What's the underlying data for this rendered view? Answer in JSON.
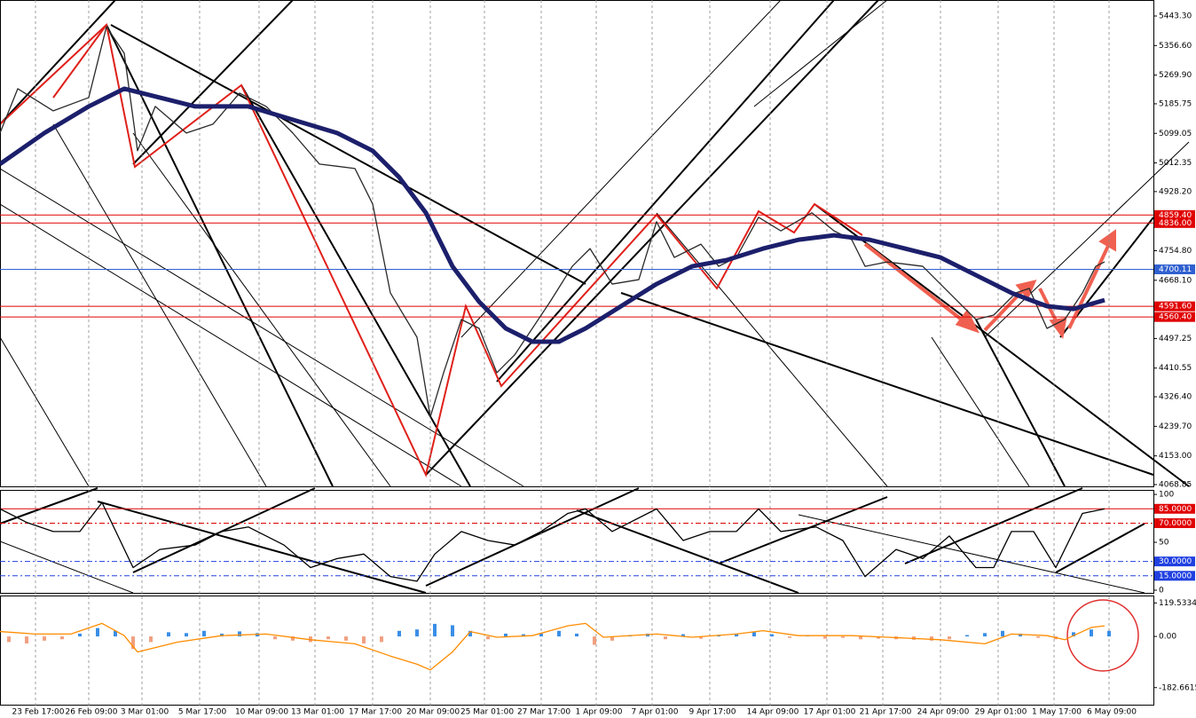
{
  "chart_data": [
    {
      "type": "line",
      "xlim": [
        0,
        130
      ],
      "ylim": [
        4063.6,
        5490.2
      ],
      "xticks": [
        {
          "value": 4,
          "label": "23 Feb 17:00"
        },
        {
          "value": 10,
          "label": "26 Feb 09:00"
        },
        {
          "value": 16,
          "label": "3 Mar 01:00"
        },
        {
          "value": 22.5,
          "label": "5 Mar 17:00"
        },
        {
          "value": 29.2,
          "label": "10 Mar 09:00"
        },
        {
          "value": 35.5,
          "label": "13 Mar 01:00"
        },
        {
          "value": 42,
          "label": "17 Mar 17:00"
        },
        {
          "value": 48.5,
          "label": "20 Mar 09:00"
        },
        {
          "value": 54.6,
          "label": "25 Mar 01:00"
        },
        {
          "value": 61,
          "label": "27 Mar 17:00"
        },
        {
          "value": 67.2,
          "label": "1 Apr 09:00"
        },
        {
          "value": 73.5,
          "label": "7 Apr 01:00"
        },
        {
          "value": 80,
          "label": "9 Apr 17:00"
        },
        {
          "value": 86.8,
          "label": "14 Apr 09:00"
        },
        {
          "value": 93.2,
          "label": "17 Apr 01:00"
        },
        {
          "value": 99.5,
          "label": "21 Apr 17:00"
        },
        {
          "value": 106,
          "label": "24 Apr 09:00"
        },
        {
          "value": 112.5,
          "label": "29 Apr 01:00"
        },
        {
          "value": 118.8,
          "label": "1 May 17:00"
        },
        {
          "value": 125,
          "label": "6 May 09:00"
        }
      ],
      "yticks": [
        {
          "value": 5443.3,
          "label": "5443.30"
        },
        {
          "value": 5356.6,
          "label": "5356.60"
        },
        {
          "value": 5269.9,
          "label": "5269.90"
        },
        5185.75,
        5099.05,
        5012.35,
        {
          "value": 4928.2,
          "label": "4928.20"
        },
        {
          "value": 4754.8,
          "label": "4754.80"
        },
        {
          "value": 4668.1,
          "label": "4668.10"
        },
        4497.25,
        4410.55,
        {
          "value": 4326.4,
          "label": "4326.40"
        },
        {
          "value": 4239.7,
          "label": "4239.70"
        },
        {
          "value": 4153,
          "label": "4153.00"
        },
        4068.85
      ],
      "levels": [
        {
          "value": 4859.4,
          "label": "4859.40",
          "color": "#e00000"
        },
        {
          "value": 4836,
          "label": "4836.00",
          "color": "#e00000"
        },
        {
          "value": 4700.11,
          "label": "4700.11",
          "color": "#3060d0"
        },
        {
          "value": 4591.6,
          "label": "4591.60",
          "color": "#e00000"
        },
        {
          "value": 4560.4,
          "label": "4560.40",
          "color": "#e00000"
        }
      ],
      "series": [
        {
          "color": "#2a2a2a",
          "x": [
            0,
            2,
            6,
            10,
            12,
            14,
            15.5,
            17.5,
            21,
            24,
            27,
            30,
            33,
            36,
            40,
            42,
            44,
            47,
            48.5,
            50,
            52,
            54,
            56,
            58,
            60,
            62,
            64.5,
            66.5,
            69,
            72,
            74,
            76,
            79,
            81,
            83,
            85.5,
            88,
            91.5,
            94,
            96,
            97.5,
            100,
            104,
            107,
            110,
            112,
            114.5,
            116,
            118,
            120,
            122,
            123.5,
            124.5
          ],
          "values": [
            5100,
            5230,
            5165,
            5204,
            5412,
            5334,
            5048,
            5178,
            5100,
            5126,
            5217,
            5178,
            5100,
            5009,
            4996,
            4892,
            4631,
            4501,
            4267,
            4397,
            4553,
            4527,
            4397,
            4449,
            4527,
            4605,
            4709,
            4761,
            4657,
            4670,
            4840,
            4735,
            4774,
            4709,
            4735,
            4853,
            4813,
            4866,
            4813,
            4787,
            4709,
            4722,
            4709,
            4631,
            4553,
            4566,
            4631,
            4644,
            4527,
            4553,
            4631,
            4709,
            4722
          ]
        },
        {
          "color": "#1c1f6b",
          "x": [
            0,
            5,
            10,
            14,
            18,
            22,
            28,
            33,
            38,
            42,
            45,
            48,
            51,
            54,
            57,
            60,
            63,
            66,
            70,
            74,
            78,
            82,
            86,
            90,
            94,
            98,
            102,
            106,
            110,
            114,
            118,
            121,
            124.5
          ],
          "values": [
            5009,
            5100,
            5178,
            5230,
            5204,
            5178,
            5178,
            5139,
            5100,
            5048,
            4970,
            4866,
            4709,
            4605,
            4527,
            4488,
            4488,
            4527,
            4592,
            4657,
            4709,
            4728,
            4761,
            4787,
            4800,
            4787,
            4761,
            4735,
            4683,
            4631,
            4592,
            4584,
            4610
          ]
        }
      ]
    },
    {
      "type": "line",
      "xlim": [
        0,
        130
      ],
      "ylim": [
        -2.8,
        103.8
      ],
      "yticks": [
        100,
        50,
        0
      ],
      "levels": [
        {
          "value": 85,
          "label": "85.0000",
          "color": "#e00000"
        },
        {
          "value": 70,
          "label": "70.0000",
          "color": "#e00000"
        },
        {
          "value": 30,
          "label": "30.0000",
          "color": "#2040e0"
        },
        {
          "value": 15,
          "label": "15.0000",
          "color": "#2040e0"
        }
      ],
      "series": [
        {
          "color": "#000000",
          "x": [
            0,
            3,
            6,
            9,
            11.5,
            15,
            18,
            22,
            25,
            28,
            32,
            35,
            38,
            41,
            44,
            47,
            49,
            52,
            55,
            58,
            61,
            64,
            66,
            69,
            74,
            77,
            80,
            83,
            85.5,
            88,
            92,
            95,
            97.5,
            101,
            104,
            107,
            110,
            112,
            114,
            116.5,
            119,
            122,
            124.5
          ],
          "values": [
            84.9,
            70.8,
            61.3,
            61.3,
            91.5,
            23.6,
            42.5,
            47.2,
            61.3,
            66,
            47.2,
            23.6,
            33,
            37.7,
            14.2,
            9.4,
            37.7,
            61.3,
            51.9,
            47.2,
            61.3,
            80.2,
            84.9,
            61.3,
            84.9,
            51.9,
            61.3,
            61.3,
            84.9,
            61.3,
            66,
            51.9,
            14.2,
            42.5,
            33,
            56.6,
            23.6,
            23.6,
            61.3,
            61.3,
            23.6,
            80.2,
            84.9
          ]
        }
      ]
    },
    {
      "type": "bar",
      "xlim": [
        0,
        130
      ],
      "ylim": [
        -246.8,
        142.9
      ],
      "yticks": [
        119.5334,
        {
          "value": 0,
          "label": "0.00"
        },
        -182.6615
      ],
      "series": [
        {
          "color": "#3a8ee6",
          "neg_color": "#f0a080",
          "x": [
            1,
            3,
            5,
            7,
            9,
            11,
            13,
            15,
            17,
            19,
            21,
            23,
            25,
            27,
            29,
            31,
            33,
            35,
            37,
            39,
            41,
            43,
            45,
            47,
            49,
            51,
            53,
            55,
            57,
            59,
            61,
            63,
            65,
            67,
            69,
            71,
            73,
            75,
            77,
            79,
            81,
            83,
            85,
            87,
            89,
            91,
            93,
            95,
            97,
            99,
            101,
            103,
            105,
            107,
            109,
            111,
            113,
            115,
            117,
            119,
            121,
            123,
            125
          ],
          "values": [
            -20,
            -25,
            -15,
            -10,
            10,
            30,
            20,
            -45,
            -20,
            15,
            12,
            20,
            10,
            18,
            12,
            -10,
            -15,
            -20,
            -10,
            -15,
            -25,
            -20,
            20,
            25,
            45,
            40,
            20,
            -10,
            10,
            8,
            10,
            20,
            10,
            -30,
            -15,
            5,
            10,
            -10,
            8,
            -8,
            5,
            10,
            15,
            8,
            -5,
            5,
            -8,
            -5,
            -10,
            -8,
            -10,
            -12,
            -15,
            -10,
            5,
            12,
            20,
            10,
            -5,
            -10,
            15,
            25,
            20
          ]
        },
        {
          "type": "line",
          "color": "#ff8c00",
          "x": [
            0,
            4,
            8,
            11.5,
            14,
            15.5,
            20,
            25,
            30,
            35,
            40,
            44,
            47,
            48.5,
            51,
            53,
            56,
            60,
            64,
            66,
            68,
            74,
            78,
            83,
            86,
            90,
            96,
            100,
            106,
            111,
            114,
            118,
            120,
            123,
            124.5
          ],
          "values": [
            17.5,
            8.7,
            8.7,
            46.6,
            2.9,
            -55.4,
            -20.4,
            2.9,
            8.7,
            -11.7,
            -26.2,
            -70,
            -99.1,
            -119.5,
            -55.4,
            17.5,
            -2.9,
            2.9,
            37.9,
            46.6,
            -2.9,
            8.7,
            -2.9,
            8.7,
            20.4,
            2.9,
            2.9,
            -2.9,
            -11.7,
            -26.2,
            8.7,
            2.9,
            -11.7,
            32.1,
            37.9
          ]
        }
      ]
    }
  ]
}
